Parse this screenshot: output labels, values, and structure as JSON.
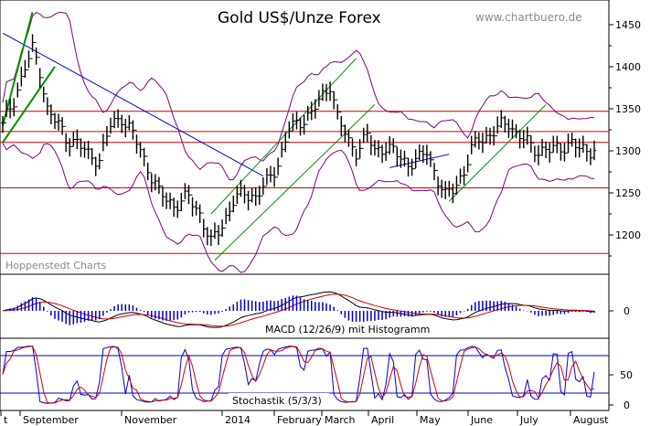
{
  "chart_data": {
    "type": "ohlc",
    "title": "Gold US$/Unze Forex",
    "watermark": "www.chartbuero.de",
    "source_label": "Hoppenstedt Charts",
    "price_axis": {
      "ticks": [
        1200,
        1250,
        1300,
        1350,
        1400,
        1450
      ],
      "range": [
        1165,
        1475
      ]
    },
    "resistance_lines": [
      1178,
      1256,
      1310,
      1323,
      1347
    ],
    "x_labels": [
      "t",
      "September",
      "November",
      "2014",
      "February",
      "March",
      "April",
      "May",
      "June",
      "July",
      "August"
    ],
    "price_anchors": [
      [
        0,
        1330
      ],
      [
        3,
        1360
      ],
      [
        6,
        1400
      ],
      [
        8,
        1420
      ],
      [
        10,
        1395
      ],
      [
        12,
        1350
      ],
      [
        15,
        1330
      ],
      [
        17,
        1315
      ],
      [
        20,
        1310
      ],
      [
        23,
        1295
      ],
      [
        26,
        1290
      ],
      [
        29,
        1330
      ],
      [
        32,
        1340
      ],
      [
        35,
        1320
      ],
      [
        38,
        1290
      ],
      [
        42,
        1250
      ],
      [
        46,
        1235
      ],
      [
        50,
        1245
      ],
      [
        53,
        1225
      ],
      [
        56,
        1190
      ],
      [
        59,
        1212
      ],
      [
        62,
        1240
      ],
      [
        65,
        1250
      ],
      [
        68,
        1245
      ],
      [
        71,
        1262
      ],
      [
        74,
        1285
      ],
      [
        77,
        1325
      ],
      [
        80,
        1335
      ],
      [
        83,
        1345
      ],
      [
        86,
        1365
      ],
      [
        88,
        1380
      ],
      [
        90,
        1340
      ],
      [
        93,
        1310
      ],
      [
        95,
        1300
      ],
      [
        98,
        1318
      ],
      [
        100,
        1300
      ],
      [
        103,
        1305
      ],
      [
        106,
        1295
      ],
      [
        109,
        1285
      ],
      [
        112,
        1290
      ],
      [
        114,
        1300
      ],
      [
        117,
        1265
      ],
      [
        119,
        1245
      ],
      [
        121,
        1255
      ],
      [
        124,
        1275
      ],
      [
        126,
        1300
      ],
      [
        128,
        1315
      ],
      [
        131,
        1318
      ],
      [
        134,
        1330
      ],
      [
        136,
        1335
      ],
      [
        138,
        1320
      ],
      [
        141,
        1310
      ],
      [
        144,
        1300
      ],
      [
        147,
        1300
      ],
      [
        150,
        1305
      ],
      [
        153,
        1308
      ],
      [
        155,
        1302
      ]
    ],
    "macd": {
      "label": "MACD (12/26/9) mit Histogramm",
      "axis_tick": 0
    },
    "stochastic": {
      "label": "Stochastik (5/3/3)",
      "axis_ticks": [
        50,
        0
      ],
      "levels": [
        80,
        20
      ]
    }
  },
  "colors": {
    "bars": "#000000",
    "bollinger": "#800080",
    "trend_green": "#009000",
    "trend_blue": "#0000cc",
    "resistance": "#d00000",
    "macd_line": "#000000",
    "signal_line": "#d00000",
    "histogram": "#0000cc",
    "stoch_k": "#0000cc",
    "stoch_d": "#d00000"
  }
}
